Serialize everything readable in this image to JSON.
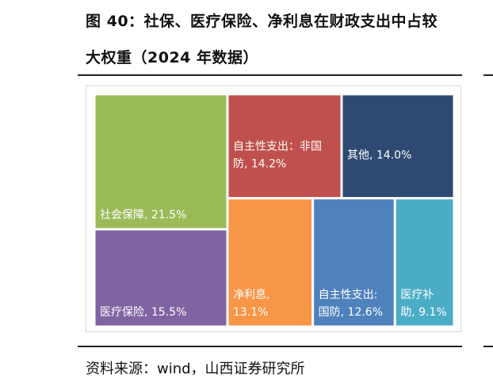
{
  "figure": {
    "title_line1": "图 40：社保、医疗保险、净利息在财政支出中占较",
    "title_line2": "大权重（2024 年数据）",
    "source": "资料来源：wind，山西证券研究所"
  },
  "chart_data": {
    "type": "treemap",
    "title": "",
    "items": [
      {
        "label_lines": [
          "社会保障, 21.5%"
        ],
        "value": 21.5,
        "color": "#9bbb59"
      },
      {
        "label_lines": [
          "医疗保险, 15.5%"
        ],
        "value": 15.5,
        "color": "#8064a2"
      },
      {
        "label_lines": [
          "自主性支出：非国",
          "防, 14.2%"
        ],
        "value": 14.2,
        "color": "#c0504d"
      },
      {
        "label_lines": [
          "其他, 14.0%"
        ],
        "value": 14.0,
        "color": "#2e4a72"
      },
      {
        "label_lines": [
          "净利息,",
          "13.1%"
        ],
        "value": 13.1,
        "color": "#f79646"
      },
      {
        "label_lines": [
          "自主性支出:",
          "国防, 12.6%"
        ],
        "value": 12.6,
        "color": "#4f81bd"
      },
      {
        "label_lines": [
          "医疗补",
          "助, 9.1%"
        ],
        "value": 9.1,
        "color": "#4bacc6"
      }
    ]
  }
}
